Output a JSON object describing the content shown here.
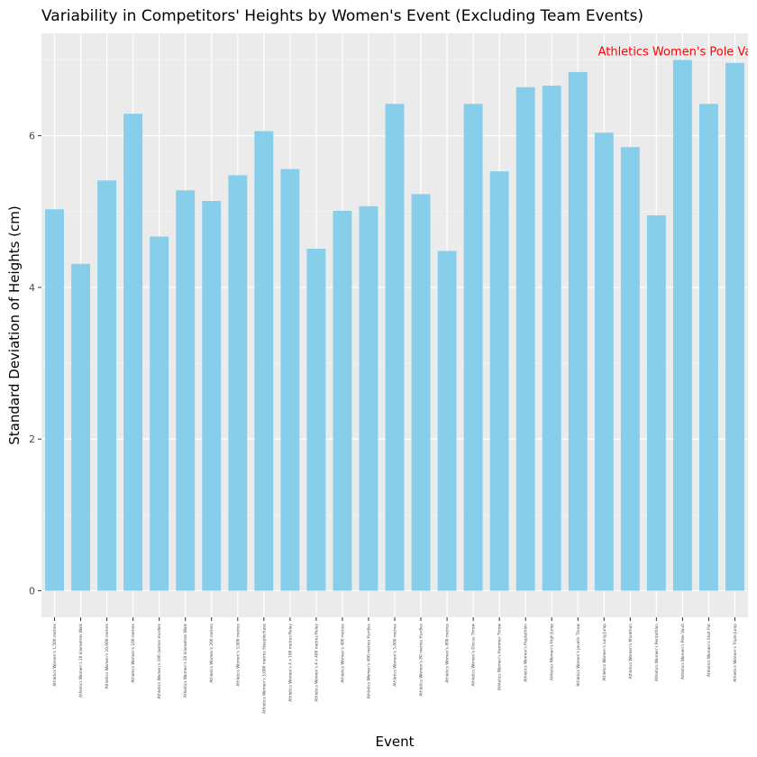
{
  "chart_data": {
    "type": "bar",
    "title": "Variability in Competitors' Heights by Women's Event (Excluding Team Events)",
    "xlabel": "Event",
    "ylabel": "Standard Deviation of Heights (cm)",
    "ylim": [
      -0.35,
      7.35
    ],
    "yticks": [
      0,
      2,
      4,
      6
    ],
    "grid": true,
    "categories": [
      "Athletics Women's 1,500 metres",
      "Athletics Women's 10 kilometres Walk",
      "Athletics Women's 10,000 metres",
      "Athletics Women's 100 metres",
      "Athletics Women's 100 metres Hurdles",
      "Athletics Women's 20 kilometres Walk",
      "Athletics Women's 200 metres",
      "Athletics Women's 3,000 metres",
      "Athletics Women's 3,000 metres Steeplechase",
      "Athletics Women's 4 x 100 metres Relay",
      "Athletics Women's 4 x 400 metres Relay",
      "Athletics Women's 400 metres",
      "Athletics Women's 400 metres Hurdles",
      "Athletics Women's 5,000 metres",
      "Athletics Women's 80 metres Hurdles",
      "Athletics Women's 800 metres",
      "Athletics Women's Discus Throw",
      "Athletics Women's Hammer Throw",
      "Athletics Women's Heptathlon",
      "Athletics Women's High Jump",
      "Athletics Women's Javelin Throw",
      "Athletics Women's Long Jump",
      "Athletics Women's Marathon",
      "Athletics Women's Pentathlon",
      "Athletics Women's Pole Vault",
      "Athletics Women's Shot Put",
      "Athletics Women's Triple Jump"
    ],
    "values": [
      5.03,
      4.31,
      5.41,
      6.29,
      4.67,
      5.28,
      5.14,
      5.48,
      6.06,
      5.56,
      4.51,
      5.01,
      5.07,
      6.42,
      5.23,
      4.48,
      6.42,
      5.53,
      6.64,
      6.66,
      6.84,
      6.04,
      5.85,
      4.95,
      7.0,
      6.42,
      6.96
    ],
    "bar_color": "#87CEEB",
    "annotation": {
      "text": "Athletics Women's Pole Vault",
      "category": "Athletics Women's Pole Vault",
      "color": "#FF0000"
    }
  }
}
